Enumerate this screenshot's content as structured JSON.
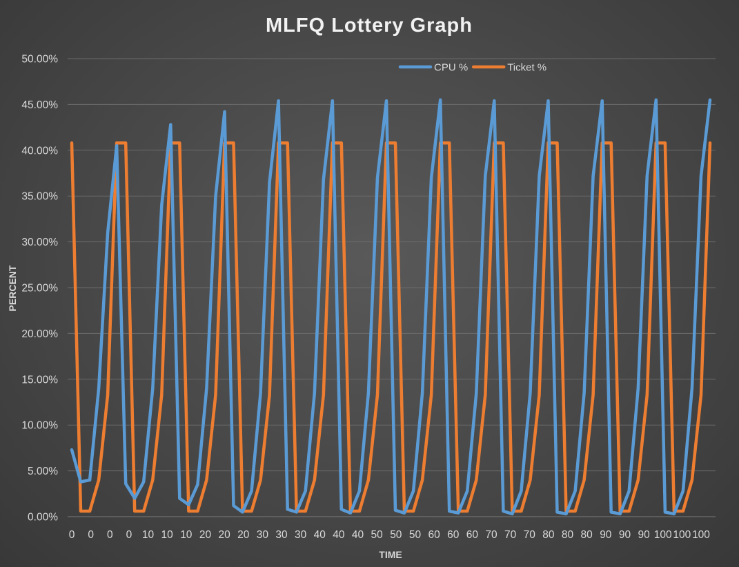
{
  "chart_data": {
    "type": "line",
    "title": "MLFQ Lottery Graph",
    "xlabel": "TIME",
    "ylabel": "PERCENT",
    "ylim": [
      0,
      0.5
    ],
    "y_ticks": [
      "0.00%",
      "5.00%",
      "10.00%",
      "15.00%",
      "20.00%",
      "25.00%",
      "30.00%",
      "35.00%",
      "40.00%",
      "45.00%",
      "50.00%"
    ],
    "x_ticks": [
      "0",
      "0",
      "0",
      "0",
      "10",
      "10",
      "10",
      "20",
      "20",
      "20",
      "30",
      "30",
      "30",
      "40",
      "40",
      "40",
      "50",
      "50",
      "50",
      "60",
      "60",
      "60",
      "70",
      "70",
      "70",
      "80",
      "80",
      "80",
      "90",
      "90",
      "90",
      "100",
      "100",
      "100"
    ],
    "grid": true,
    "legend_position": "top-right",
    "series": [
      {
        "name": "CPU %",
        "color": "#5b9bd5",
        "values": [
          0.073,
          0.038,
          0.04,
          0.14,
          0.31,
          0.405,
          0.036,
          0.02,
          0.038,
          0.14,
          0.34,
          0.428,
          0.02,
          0.013,
          0.035,
          0.14,
          0.35,
          0.442,
          0.012,
          0.005,
          0.028,
          0.135,
          0.365,
          0.454,
          0.008,
          0.005,
          0.028,
          0.135,
          0.368,
          0.454,
          0.008,
          0.004,
          0.028,
          0.135,
          0.37,
          0.454,
          0.007,
          0.004,
          0.028,
          0.135,
          0.37,
          0.455,
          0.006,
          0.004,
          0.028,
          0.135,
          0.372,
          0.454,
          0.006,
          0.003,
          0.028,
          0.135,
          0.372,
          0.454,
          0.005,
          0.003,
          0.028,
          0.135,
          0.372,
          0.454,
          0.005,
          0.003,
          0.028,
          0.14,
          0.372,
          0.455,
          0.005,
          0.003,
          0.028,
          0.14,
          0.372,
          0.455
        ]
      },
      {
        "name": "Ticket %",
        "color": "#ed7d31",
        "values": [
          0.408,
          0.006,
          0.006,
          0.04,
          0.133,
          0.408,
          0.408,
          0.006,
          0.006,
          0.04,
          0.133,
          0.408,
          0.408,
          0.006,
          0.006,
          0.04,
          0.133,
          0.408,
          0.408,
          0.006,
          0.006,
          0.04,
          0.133,
          0.408,
          0.408,
          0.006,
          0.006,
          0.04,
          0.133,
          0.408,
          0.408,
          0.006,
          0.006,
          0.04,
          0.133,
          0.408,
          0.408,
          0.006,
          0.006,
          0.04,
          0.133,
          0.408,
          0.408,
          0.006,
          0.006,
          0.04,
          0.133,
          0.408,
          0.408,
          0.006,
          0.006,
          0.04,
          0.133,
          0.408,
          0.408,
          0.006,
          0.006,
          0.04,
          0.133,
          0.408,
          0.408,
          0.006,
          0.006,
          0.04,
          0.133,
          0.408,
          0.408,
          0.006,
          0.006,
          0.04,
          0.133,
          0.408
        ]
      }
    ]
  }
}
